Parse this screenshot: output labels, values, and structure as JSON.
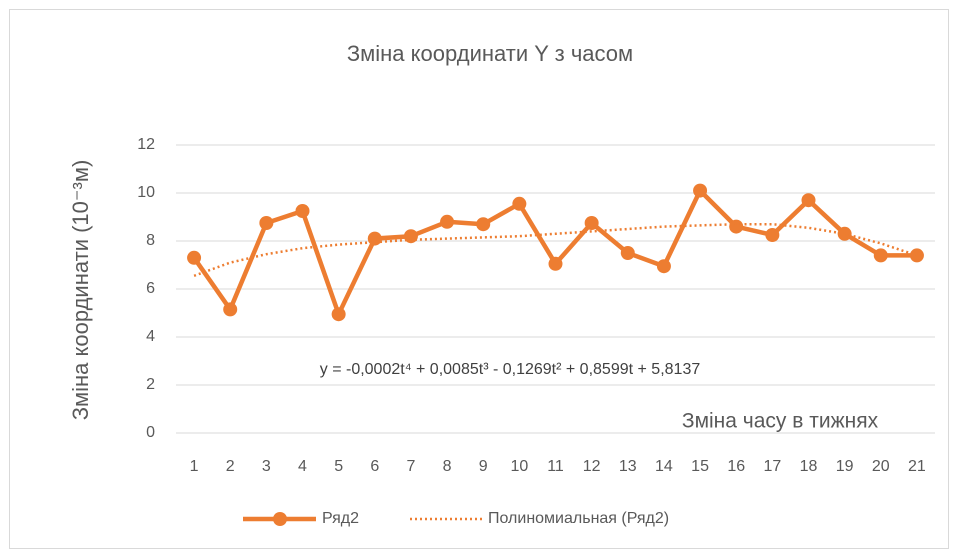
{
  "chart_data": {
    "type": "line",
    "title": "Зміна координати Y з часом",
    "y_label": "Зміна координати (10⁻³м)",
    "annotations": [
      "y = -0,0002t⁴ + 0,0085t³ - 0,1269t² + 0,8599t + 5,8137",
      "Зміна часу в тижнях"
    ],
    "categories": [
      "1",
      "2",
      "3",
      "4",
      "5",
      "6",
      "7",
      "8",
      "9",
      "10",
      "11",
      "12",
      "13",
      "14",
      "15",
      "16",
      "17",
      "18",
      "19",
      "20",
      "21"
    ],
    "series": [
      {
        "name": "Ряд2",
        "color": "#ed7d31",
        "style": "solid",
        "markers": true,
        "values": [
          7.3,
          5.15,
          8.75,
          9.25,
          4.95,
          8.1,
          8.2,
          8.8,
          8.7,
          9.55,
          7.05,
          8.75,
          7.5,
          6.95,
          10.1,
          8.6,
          8.25,
          9.7,
          8.3,
          7.4,
          7.4
        ]
      },
      {
        "name": "Полиномиальная (Ряд2)",
        "color": "#ed7d31",
        "style": "dotted",
        "markers": false,
        "values": [
          6.55,
          7.1,
          7.45,
          7.7,
          7.85,
          7.95,
          8.05,
          8.1,
          8.15,
          8.2,
          8.3,
          8.4,
          8.5,
          8.6,
          8.65,
          8.7,
          8.7,
          8.55,
          8.3,
          7.9,
          7.4
        ]
      }
    ],
    "ylim": [
      0,
      12
    ],
    "yticks": [
      0,
      2,
      4,
      6,
      8,
      10,
      12
    ],
    "grid": true,
    "legend": "bottom"
  }
}
